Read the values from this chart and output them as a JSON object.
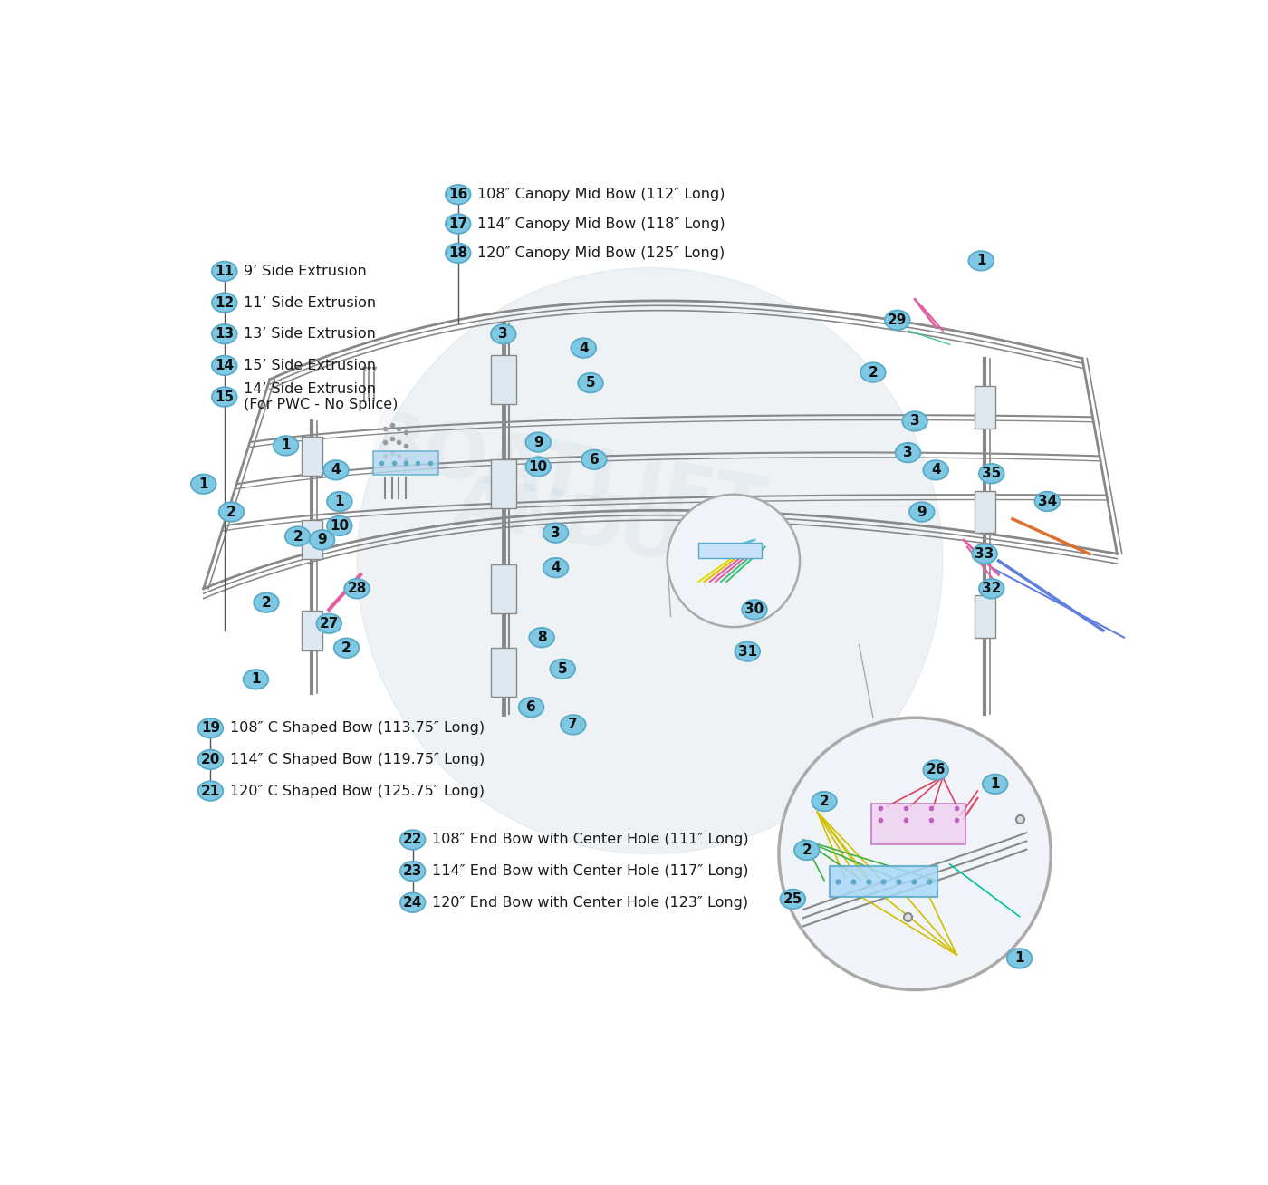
{
  "bg_color": "#ffffff",
  "badge_fill": "#7ec8e3",
  "badge_edge": "#5aaac8",
  "badge_text_color": "#111111",
  "frame_color": "#888888",
  "label_color": "#1a1a1a",
  "watermark_color": "#c8d4de",
  "legend_items_top": [
    {
      "num": "16",
      "text": "108″ Canopy Mid Bow (112″ Long)"
    },
    {
      "num": "17",
      "text": "114″ Canopy Mid Bow (118″ Long)"
    },
    {
      "num": "18",
      "text": "120″ Canopy Mid Bow (125″ Long)"
    }
  ],
  "legend_items_left_top": [
    {
      "num": "11",
      "text": "9’ Side Extrusion"
    },
    {
      "num": "12",
      "text": "11’ Side Extrusion"
    },
    {
      "num": "13",
      "text": "13’ Side Extrusion"
    },
    {
      "num": "14",
      "text": "15’ Side Extrusion"
    },
    {
      "num": "15",
      "text": "14’ Side Extrusion\n(For PWC - No Splice)"
    }
  ],
  "legend_items_bottom_left": [
    {
      "num": "19",
      "text": "108″ C Shaped Bow (113.75″ Long)"
    },
    {
      "num": "20",
      "text": "114″ C Shaped Bow (119.75″ Long)"
    },
    {
      "num": "21",
      "text": "120″ C Shaped Bow (125.75″ Long)"
    }
  ],
  "legend_items_bottom": [
    {
      "num": "22",
      "text": "108″ End Bow with Center Hole (111″ Long)"
    },
    {
      "num": "23",
      "text": "114″ End Bow with Center Hole (117″ Long)"
    },
    {
      "num": "24",
      "text": "120″ End Bow with Center Hole (123″ Long)"
    }
  ]
}
